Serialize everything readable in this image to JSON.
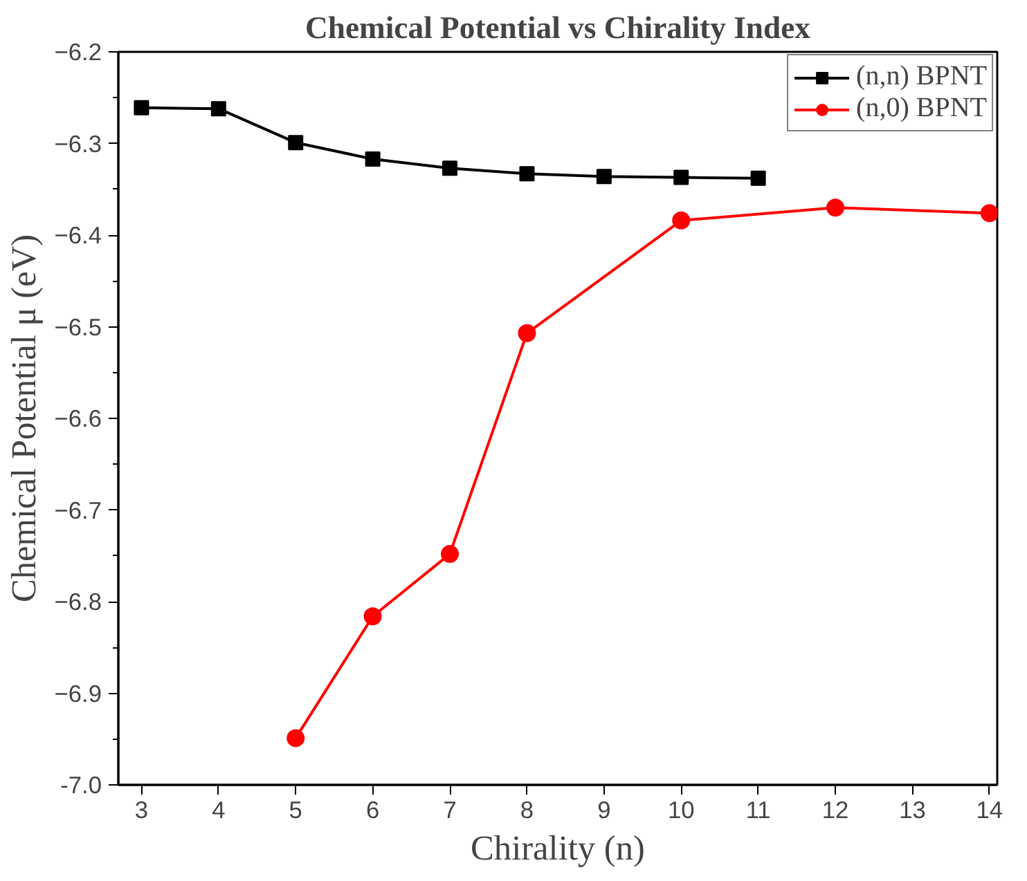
{
  "chart_data": {
    "type": "line",
    "title": "Chemical Potential vs Chirality Index",
    "xlabel": "Chirality (n)",
    "ylabel": "Chemical Potential μ (eV)",
    "xlim": [
      2.7,
      14.1
    ],
    "xticks": [
      3,
      4,
      5,
      6,
      7,
      8,
      9,
      10,
      11,
      12,
      13,
      14
    ],
    "ylim": [
      -7.0,
      -6.2
    ],
    "yticks": [
      {
        "value": -7.0,
        "label": "-7.0"
      },
      -6.9,
      -6.8,
      -6.7,
      -6.6,
      -6.5,
      -6.4,
      -6.3,
      -6.2
    ],
    "legend": "top right",
    "grid": false,
    "line_style": "solid",
    "series": [
      {
        "name": "(n,n) BPNT",
        "color": "#000000",
        "marker": "square",
        "x": [
          3,
          4,
          5,
          6,
          7,
          8,
          9,
          10,
          11
        ],
        "values": [
          -6.261,
          -6.262,
          -6.299,
          -6.317,
          -6.327,
          -6.333,
          -6.336,
          -6.337,
          -6.338
        ]
      },
      {
        "name": "(n,0) BPNT",
        "color": "#ff0000",
        "marker": "circle",
        "x": [
          5,
          6,
          7,
          8,
          10,
          12,
          14
        ],
        "values": [
          -6.949,
          -6.816,
          -6.748,
          -6.507,
          -6.384,
          -6.37,
          -6.376
        ]
      }
    ]
  }
}
